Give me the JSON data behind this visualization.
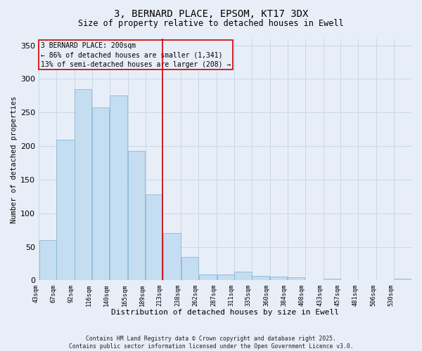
{
  "title": "3, BERNARD PLACE, EPSOM, KT17 3DX",
  "subtitle": "Size of property relative to detached houses in Ewell",
  "xlabel": "Distribution of detached houses by size in Ewell",
  "ylabel": "Number of detached properties",
  "footer_line1": "Contains HM Land Registry data © Crown copyright and database right 2025.",
  "footer_line2": "Contains public sector information licensed under the Open Government Licence v3.0.",
  "annotation_title": "3 BERNARD PLACE: 200sqm",
  "annotation_line1": "← 86% of detached houses are smaller (1,341)",
  "annotation_line2": "13% of semi-detached houses are larger (208) →",
  "vline_color": "#cc0000",
  "grid_color": "#c8d8e8",
  "bg_color": "#e8eef8",
  "bar_color": "#c5ddf0",
  "bar_edgecolor": "#8ab8d8",
  "annotation_box_edgecolor": "#cc0000",
  "bin_edges": [
    43,
    67,
    92,
    116,
    140,
    165,
    189,
    213,
    238,
    262,
    287,
    311,
    335,
    360,
    384,
    408,
    433,
    457,
    481,
    506,
    530
  ],
  "bin_labels": [
    "43sqm",
    "67sqm",
    "92sqm",
    "116sqm",
    "140sqm",
    "165sqm",
    "189sqm",
    "213sqm",
    "238sqm",
    "262sqm",
    "287sqm",
    "311sqm",
    "335sqm",
    "360sqm",
    "384sqm",
    "408sqm",
    "433sqm",
    "457sqm",
    "481sqm",
    "506sqm",
    "530sqm"
  ],
  "bar_heights": [
    60,
    210,
    285,
    258,
    275,
    193,
    128,
    70,
    35,
    9,
    9,
    13,
    7,
    6,
    5,
    0,
    3,
    0,
    1,
    0,
    3
  ],
  "vline_x": 213,
  "ylim": [
    0,
    360
  ],
  "yticks": [
    0,
    50,
    100,
    150,
    200,
    250,
    300,
    350
  ]
}
